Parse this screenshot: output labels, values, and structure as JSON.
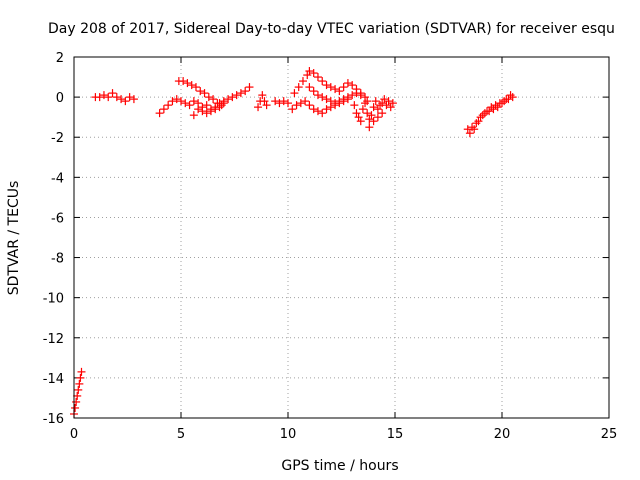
{
  "chart_data": {
    "type": "scatter",
    "title": "Day 208 of 2017, Sidereal Day-to-day VTEC variation (SDTVAR) for receiver esqu",
    "xlabel": "GPS time / hours",
    "ylabel": "SDTVAR / TECUs",
    "xlim": [
      0,
      25
    ],
    "ylim": [
      -16,
      2
    ],
    "xticks": [
      0,
      5,
      10,
      15,
      20,
      25
    ],
    "yticks": [
      2,
      0,
      -2,
      -4,
      -6,
      -8,
      -10,
      -12,
      -14,
      -16
    ],
    "grid": true,
    "marker": "+",
    "color": "#ff0000",
    "series": [
      {
        "name": "SDTVAR",
        "x": [
          0.0,
          0.05,
          0.1,
          0.15,
          0.2,
          0.25,
          0.3,
          0.35,
          1.0,
          1.2,
          1.4,
          1.6,
          1.8,
          2.0,
          2.2,
          2.4,
          2.6,
          2.8,
          4.0,
          4.2,
          4.4,
          4.6,
          4.8,
          5.0,
          5.2,
          5.4,
          5.6,
          5.8,
          6.0,
          6.2,
          6.4,
          6.6,
          6.8,
          7.0,
          7.2,
          7.4,
          7.6,
          7.8,
          8.0,
          8.2,
          4.9,
          5.1,
          5.3,
          5.5,
          5.7,
          5.9,
          6.1,
          6.3,
          6.5,
          6.7,
          6.9,
          5.8,
          6.0,
          6.2,
          6.4,
          6.6,
          6.8,
          7.0,
          5.6,
          8.6,
          8.7,
          8.8,
          8.9,
          9.0,
          9.4,
          9.6,
          9.8,
          10.0,
          10.2,
          10.4,
          10.6,
          10.8,
          11.0,
          11.2,
          11.4,
          11.6,
          11.8,
          12.0,
          12.2,
          12.4,
          12.6,
          12.8,
          10.3,
          10.5,
          10.7,
          10.9,
          11.0,
          11.2,
          11.4,
          11.6,
          11.8,
          12.0,
          12.2,
          12.4,
          12.6,
          12.8,
          13.0,
          13.2,
          13.4,
          11.0,
          11.2,
          11.4,
          11.6,
          11.8,
          12.0,
          12.2,
          12.4,
          12.6,
          12.8,
          13.0,
          13.2,
          13.4,
          13.6,
          13.7,
          13.1,
          13.2,
          13.3,
          13.4,
          13.5,
          13.6,
          13.7,
          13.8,
          13.9,
          14.0,
          14.1,
          14.2,
          14.3,
          14.4,
          14.5,
          14.6,
          14.7,
          14.8,
          14.9,
          13.8,
          14.0,
          14.2,
          14.4,
          18.4,
          18.6,
          18.8,
          19.0,
          19.2,
          19.4,
          19.6,
          19.8,
          20.0,
          20.2,
          20.4,
          18.5,
          18.7,
          18.9,
          19.1,
          19.3,
          19.5,
          19.7,
          19.9,
          20.1,
          20.3,
          20.5
        ],
        "y": [
          -15.8,
          -15.5,
          -15.2,
          -14.9,
          -14.6,
          -14.3,
          -14.0,
          -13.7,
          0.0,
          0.0,
          0.1,
          0.0,
          0.2,
          0.0,
          -0.1,
          -0.2,
          0.0,
          -0.1,
          -0.8,
          -0.6,
          -0.4,
          -0.2,
          -0.1,
          -0.2,
          -0.3,
          -0.4,
          -0.2,
          -0.3,
          -0.5,
          -0.4,
          -0.6,
          -0.5,
          -0.3,
          -0.2,
          -0.1,
          0.0,
          0.1,
          0.2,
          0.3,
          0.5,
          0.8,
          0.8,
          0.7,
          0.6,
          0.5,
          0.3,
          0.2,
          0.0,
          -0.1,
          -0.3,
          -0.4,
          -0.6,
          -0.7,
          -0.8,
          -0.7,
          -0.6,
          -0.5,
          -0.3,
          -0.9,
          -0.5,
          -0.2,
          0.1,
          -0.2,
          -0.4,
          -0.2,
          -0.3,
          -0.2,
          -0.3,
          -0.6,
          -0.4,
          -0.3,
          -0.2,
          -0.4,
          -0.6,
          -0.7,
          -0.8,
          -0.6,
          -0.5,
          -0.4,
          -0.3,
          -0.2,
          -0.1,
          0.2,
          0.5,
          0.8,
          1.1,
          1.3,
          1.2,
          1.0,
          0.8,
          0.6,
          0.5,
          0.4,
          0.3,
          0.5,
          0.7,
          0.6,
          0.4,
          0.2,
          0.5,
          0.3,
          0.1,
          0.0,
          -0.1,
          -0.2,
          -0.3,
          -0.2,
          -0.1,
          0.0,
          0.1,
          0.2,
          0.1,
          0.0,
          -0.2,
          -0.4,
          -0.8,
          -1.0,
          -1.2,
          -0.6,
          -0.3,
          -0.8,
          -1.1,
          -0.9,
          -0.5,
          -0.2,
          -0.6,
          -0.4,
          -0.3,
          -0.1,
          -0.4,
          -0.2,
          -0.5,
          -0.3,
          -1.5,
          -1.2,
          -1.0,
          -0.8,
          -1.6,
          -1.5,
          -1.3,
          -1.0,
          -0.8,
          -0.7,
          -0.6,
          -0.5,
          -0.3,
          -0.1,
          0.1,
          -1.8,
          -1.6,
          -1.2,
          -0.9,
          -0.7,
          -0.5,
          -0.4,
          -0.3,
          -0.2,
          -0.1,
          0.0
        ]
      }
    ]
  }
}
